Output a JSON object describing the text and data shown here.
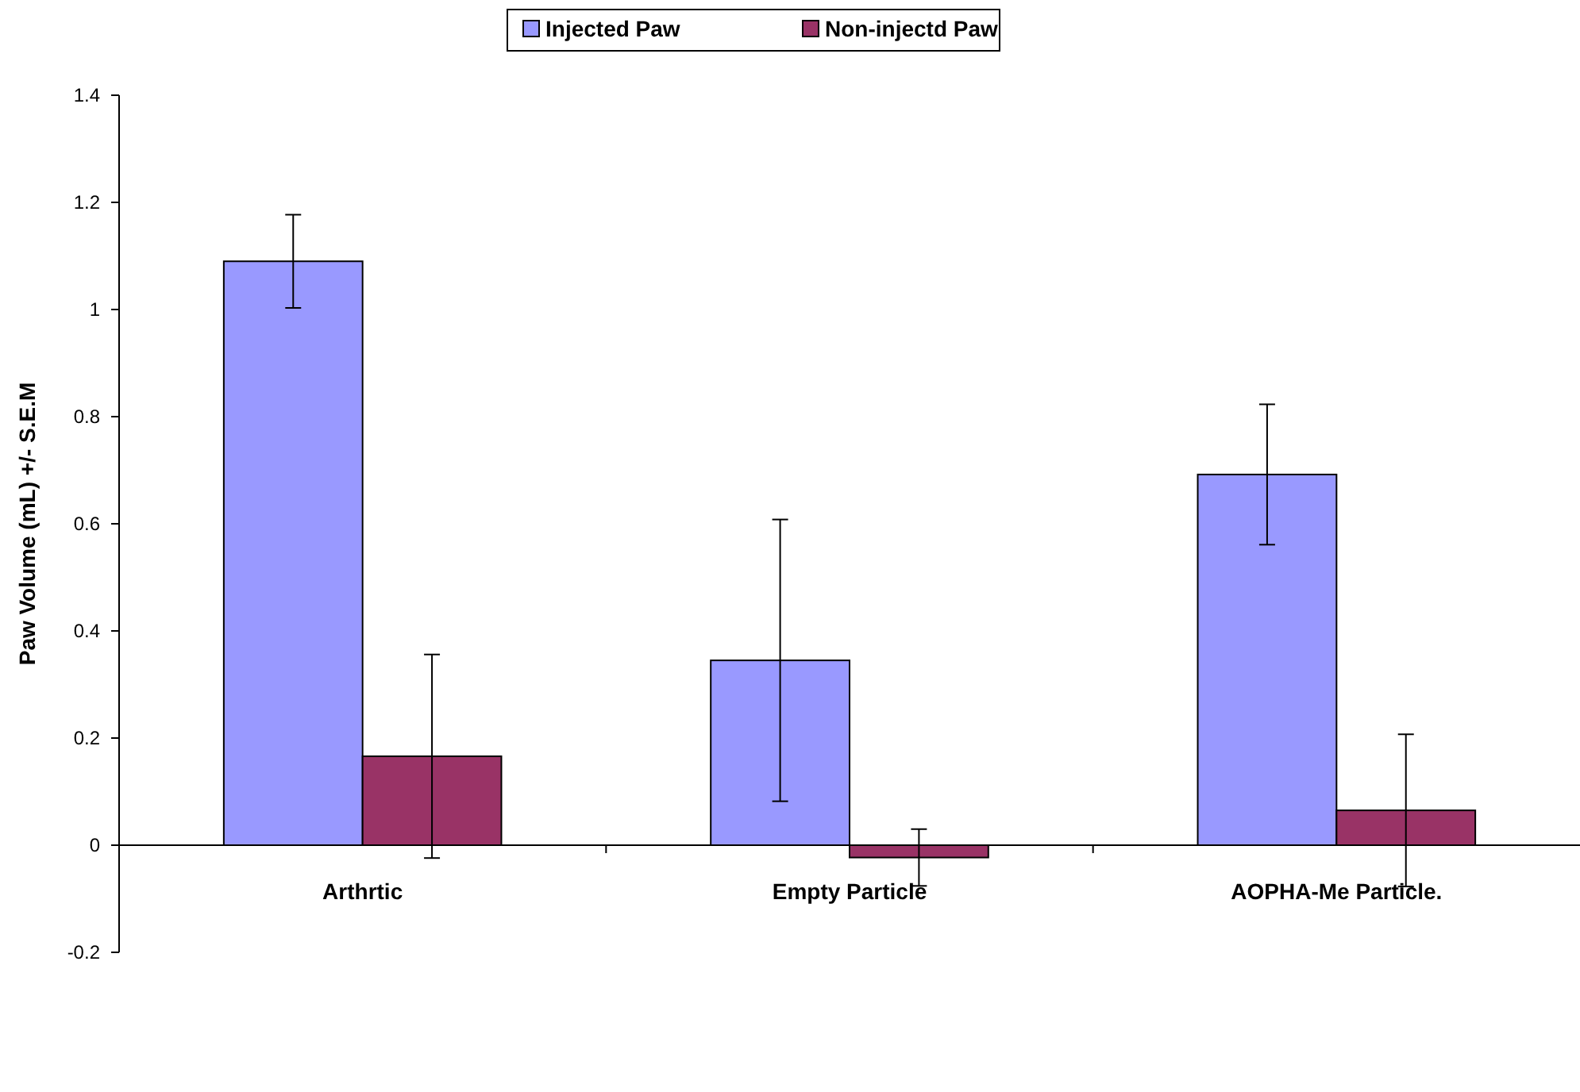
{
  "chart_data": {
    "type": "bar",
    "ylabel": "Paw Volume (mL) +/- S.E.M",
    "categories": [
      "Arthrtic",
      "Empty Particle",
      "AOPHA-Me Particle."
    ],
    "series": [
      {
        "name": "Injected Paw",
        "color": "#9999ff",
        "values": [
          1.09,
          0.345,
          0.692
        ],
        "errors": [
          0.087,
          0.263,
          0.131
        ]
      },
      {
        "name": "Non-injectd Paw",
        "color": "#993366",
        "values": [
          0.166,
          -0.023,
          0.065
        ],
        "errors": [
          0.19,
          0.053,
          0.142
        ]
      }
    ],
    "ylim": [
      -0.2,
      1.4
    ],
    "yticks": [
      -0.2,
      0,
      0.2,
      0.4,
      0.6,
      0.8,
      1,
      1.2,
      1.4
    ],
    "legend": "top",
    "grid": false
  }
}
